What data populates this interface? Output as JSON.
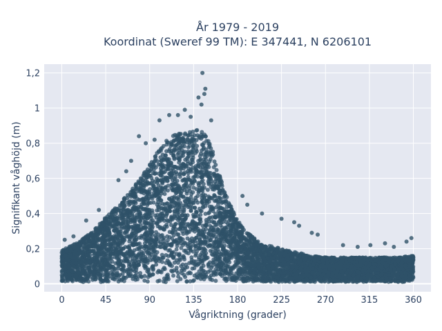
{
  "chart_data": {
    "type": "scatter",
    "title": "År 1979 - 2019",
    "subtitle": "Koordinat (Sweref 99 TM): E 347441, N 6206101",
    "xlabel": "Vågriktning (grader)",
    "ylabel": "Signifikant våghöjd (m)",
    "xlim": [
      -18,
      378
    ],
    "ylim": [
      -0.045,
      1.25
    ],
    "x_ticks": [
      0,
      45,
      90,
      135,
      180,
      225,
      270,
      315,
      360
    ],
    "x_tick_labels": [
      "0",
      "45",
      "90",
      "135",
      "180",
      "225",
      "270",
      "315",
      "360"
    ],
    "y_ticks": [
      0,
      0.2,
      0.4,
      0.6,
      0.8,
      1,
      1.2
    ],
    "y_tick_labels": [
      "0",
      "0,2",
      "0,4",
      "0,6",
      "0,8",
      "1",
      "1,2"
    ],
    "grid": true,
    "marker_color": "#2f5168",
    "plot_bg": "#e5e8f1",
    "upper_envelope": {
      "x": [
        0,
        10,
        20,
        30,
        45,
        60,
        75,
        90,
        100,
        110,
        120,
        130,
        135,
        140,
        145,
        150,
        155,
        160,
        170,
        180,
        190,
        200,
        210,
        225,
        240,
        255,
        270,
        285,
        300,
        315,
        330,
        345,
        360
      ],
      "y": [
        0.19,
        0.22,
        0.25,
        0.29,
        0.38,
        0.46,
        0.56,
        0.68,
        0.77,
        0.83,
        0.86,
        0.86,
        0.87,
        0.88,
        0.87,
        0.83,
        0.76,
        0.65,
        0.48,
        0.36,
        0.29,
        0.25,
        0.22,
        0.2,
        0.18,
        0.16,
        0.15,
        0.15,
        0.15,
        0.15,
        0.15,
        0.15,
        0.16
      ]
    },
    "outliers": [
      {
        "x": 144,
        "y": 1.2
      },
      {
        "x": 147,
        "y": 1.11
      },
      {
        "x": 146,
        "y": 1.08
      },
      {
        "x": 140,
        "y": 1.06
      },
      {
        "x": 143,
        "y": 1.02
      },
      {
        "x": 126,
        "y": 0.99
      },
      {
        "x": 110,
        "y": 0.96
      },
      {
        "x": 119,
        "y": 0.96
      },
      {
        "x": 132,
        "y": 0.95
      },
      {
        "x": 153,
        "y": 0.93
      },
      {
        "x": 100,
        "y": 0.93
      },
      {
        "x": 79,
        "y": 0.84
      },
      {
        "x": 86,
        "y": 0.8
      },
      {
        "x": 95,
        "y": 0.82
      },
      {
        "x": 71,
        "y": 0.7
      },
      {
        "x": 66,
        "y": 0.64
      },
      {
        "x": 58,
        "y": 0.59
      },
      {
        "x": 185,
        "y": 0.5
      },
      {
        "x": 190,
        "y": 0.45
      },
      {
        "x": 205,
        "y": 0.4
      },
      {
        "x": 225,
        "y": 0.37
      },
      {
        "x": 238,
        "y": 0.35
      },
      {
        "x": 243,
        "y": 0.33
      },
      {
        "x": 256,
        "y": 0.29
      },
      {
        "x": 262,
        "y": 0.28
      },
      {
        "x": 25,
        "y": 0.36
      },
      {
        "x": 38,
        "y": 0.42
      },
      {
        "x": 3,
        "y": 0.25
      },
      {
        "x": 12,
        "y": 0.27
      },
      {
        "x": 288,
        "y": 0.22
      },
      {
        "x": 303,
        "y": 0.21
      },
      {
        "x": 316,
        "y": 0.22
      },
      {
        "x": 331,
        "y": 0.23
      },
      {
        "x": 340,
        "y": 0.21
      },
      {
        "x": 353,
        "y": 0.24
      },
      {
        "x": 358,
        "y": 0.26
      }
    ]
  }
}
